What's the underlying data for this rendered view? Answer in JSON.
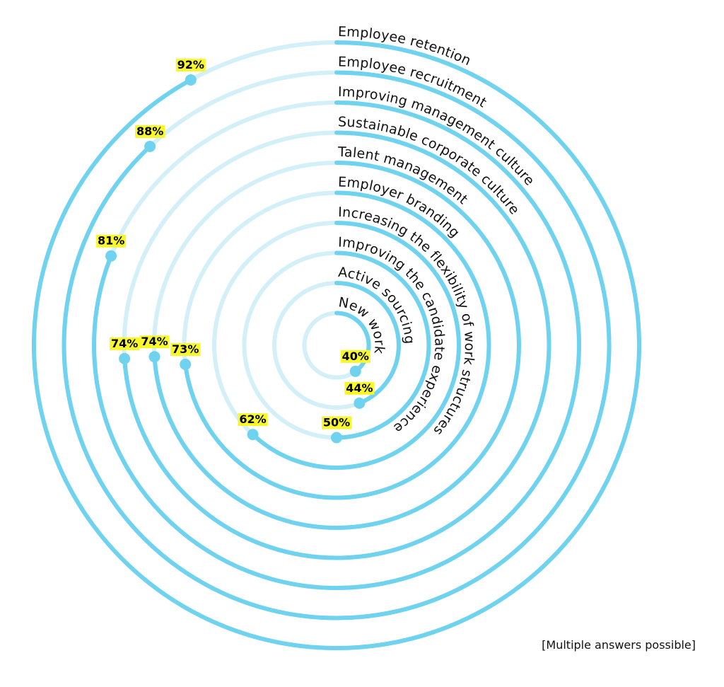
{
  "chart_data": {
    "type": "radial-bar",
    "value_unit": "%",
    "scale_max": 100,
    "categories": [
      "Employee retention",
      "Employee recruitment",
      "Improving management culture",
      "Sustainable corporate culture",
      "Talent management",
      "Employer branding",
      "Increasing the flexibility of work structures",
      "Improving the candidate experience",
      "Active sourcing",
      "New work"
    ],
    "values": [
      92,
      88,
      81,
      74,
      74,
      73,
      62,
      50,
      44,
      40
    ],
    "value_labels": [
      "92%",
      "88%",
      "81%",
      "74%",
      "74%",
      "73%",
      "62%",
      "50%",
      "44%",
      "40%"
    ],
    "colors": {
      "bar": "#6fd3ef",
      "track": "#d3eff8",
      "value_highlight": "#f7f72a",
      "text": "#111111"
    }
  },
  "footnote": "[Multiple answers possible]"
}
